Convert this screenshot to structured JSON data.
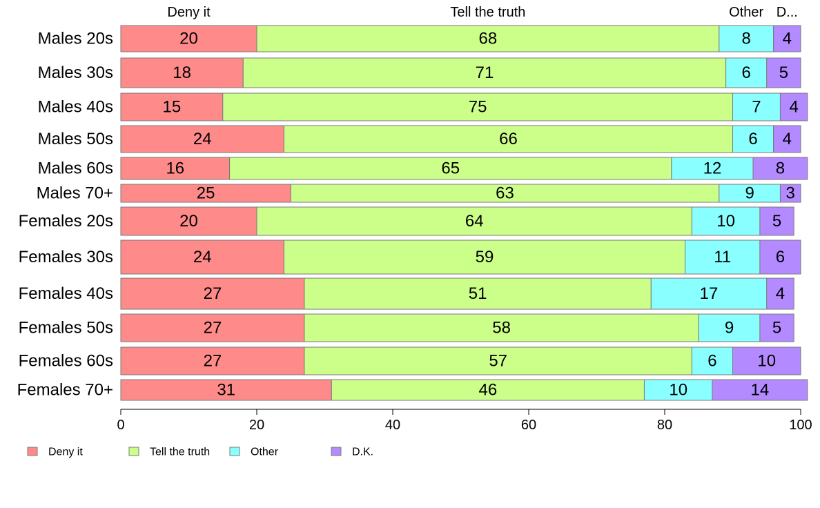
{
  "chart_data": {
    "type": "bar",
    "orientation": "horizontal",
    "stacked": true,
    "categories": [
      "Males 20s",
      "Males 30s",
      "Males 40s",
      "Males 50s",
      "Males 60s",
      "Males 70+",
      "Females 20s",
      "Females 30s",
      "Females 40s",
      "Females 50s",
      "Females 60s",
      "Females 70+"
    ],
    "series": [
      {
        "name": "Deny it",
        "color": "#ff8a8a",
        "values": [
          20,
          18,
          15,
          24,
          16,
          25,
          20,
          24,
          27,
          27,
          27,
          31
        ]
      },
      {
        "name": "Tell the truth",
        "color": "#ccff8a",
        "values": [
          68,
          71,
          75,
          66,
          65,
          63,
          64,
          59,
          51,
          58,
          57,
          46
        ]
      },
      {
        "name": "Other",
        "color": "#8affff",
        "values": [
          8,
          6,
          7,
          6,
          12,
          9,
          10,
          11,
          17,
          9,
          6,
          10
        ]
      },
      {
        "name": "D.K.",
        "color": "#b38aff",
        "values": [
          4,
          5,
          4,
          4,
          8,
          3,
          5,
          6,
          4,
          5,
          10,
          14
        ]
      }
    ],
    "header_labels": [
      "Deny it",
      "Tell the truth",
      "Other",
      "D..."
    ],
    "xlim": [
      0,
      100
    ],
    "xticks": [
      0,
      20,
      40,
      60,
      80,
      100
    ],
    "legend": [
      "Deny it",
      "Tell the truth",
      "Other",
      "D.K."
    ],
    "legend_position": "bottom-left",
    "grid": false,
    "title": "",
    "xlabel": "",
    "ylabel": ""
  }
}
